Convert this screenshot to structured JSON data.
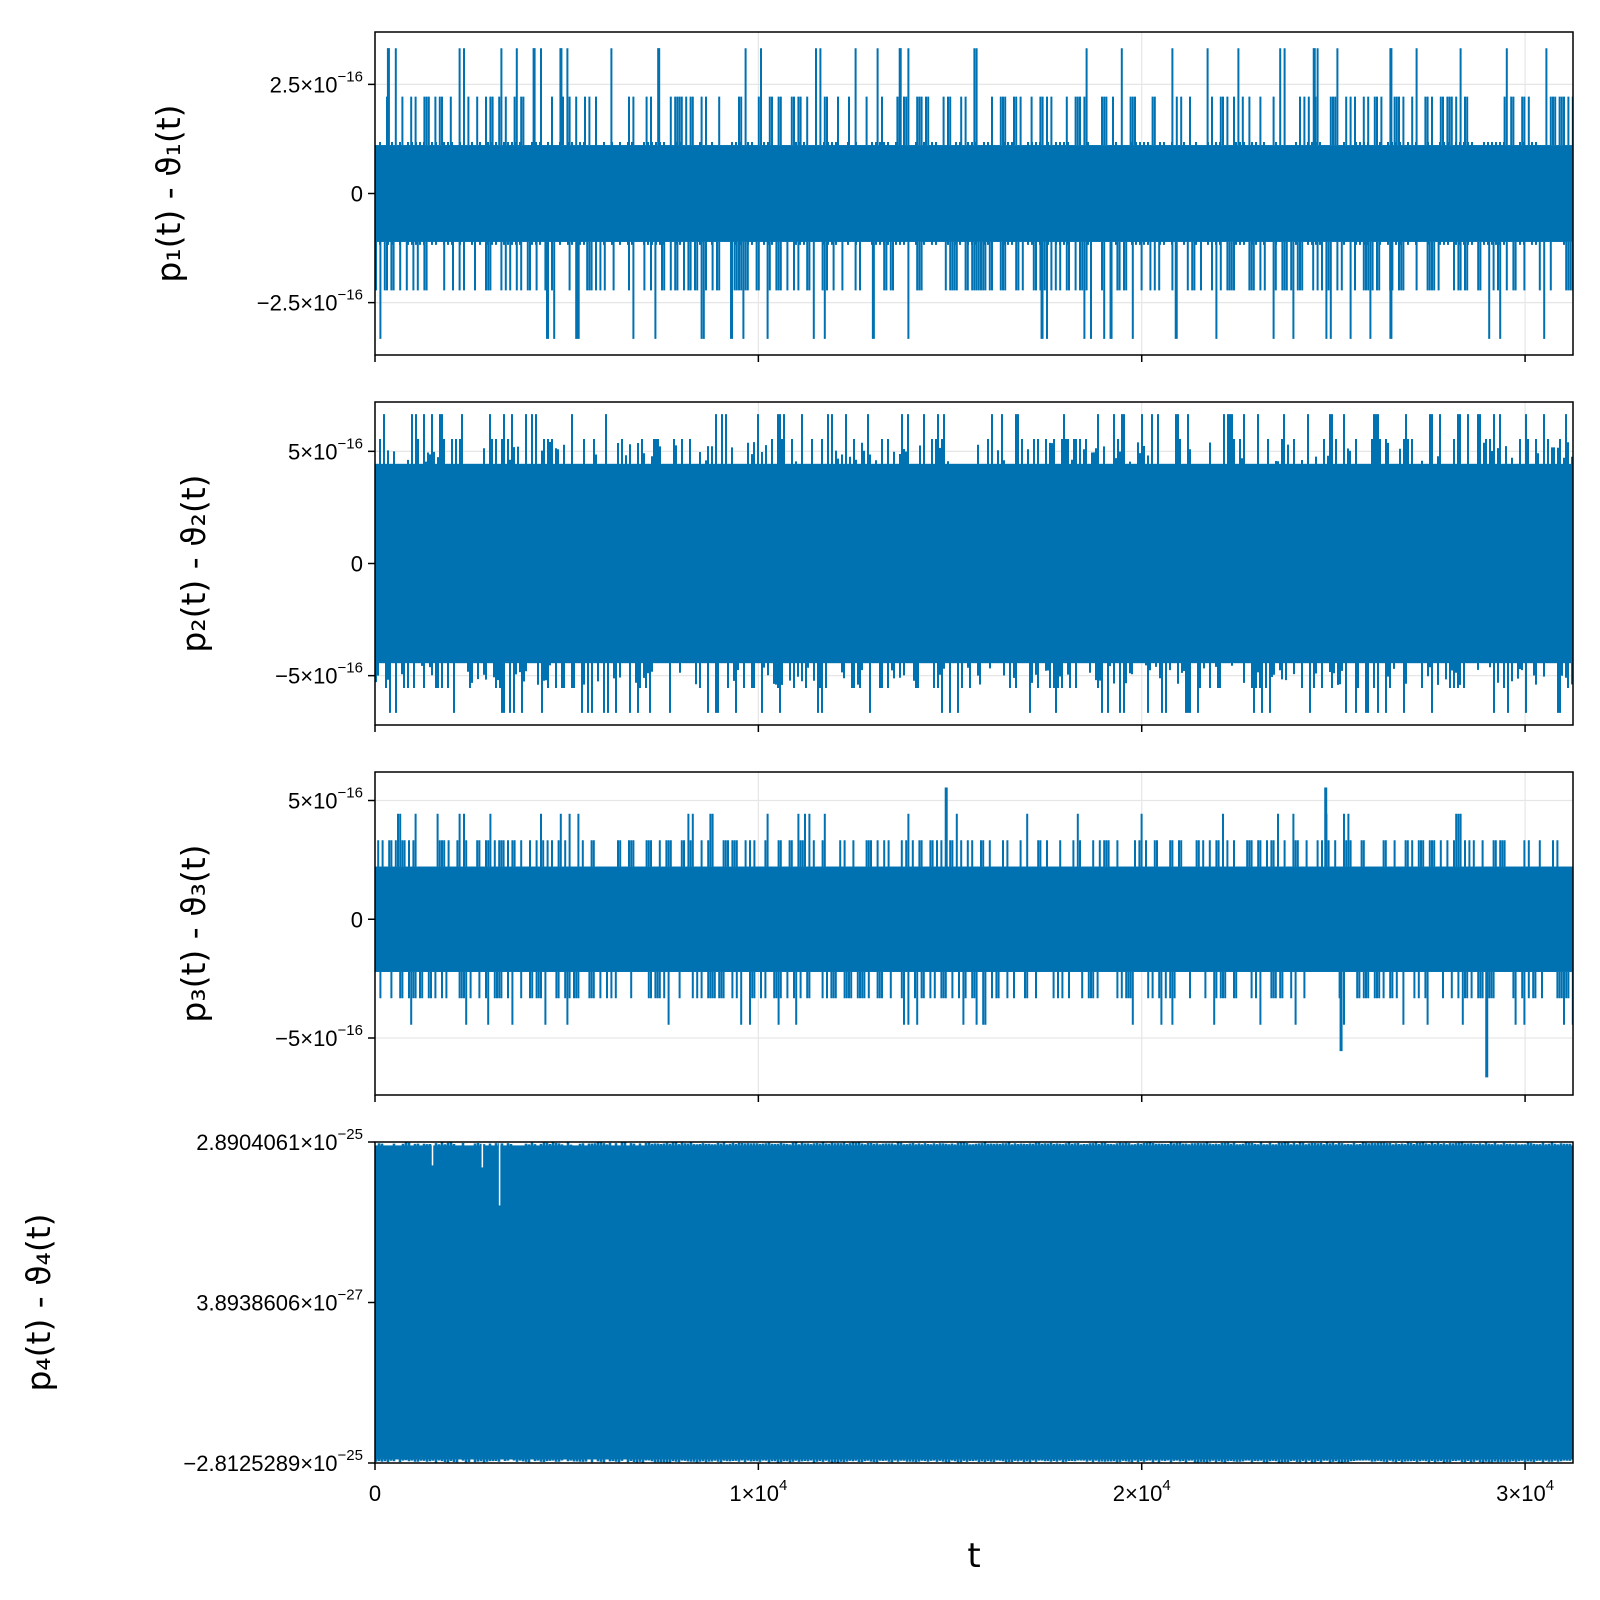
{
  "chart_data": [
    {
      "type": "line",
      "ylabel": "p₁(t) - ϑ₁(t)",
      "xlim": [
        0,
        31250
      ],
      "ylim": [
        -3.7e-16,
        3.7e-16
      ],
      "y_ticks": [
        {
          "value": 2.5e-16,
          "mantissa": "2.5×10",
          "exp": "−16"
        },
        {
          "value": 0,
          "mantissa": "0",
          "exp": ""
        },
        {
          "value": -2.5e-16,
          "mantissa": "−2.5×10",
          "exp": "−16"
        }
      ],
      "color": "#0072b2",
      "series_levels": [
        -3.33e-16,
        -2.22e-16,
        -1.11e-16,
        0,
        1.11e-16,
        2.22e-16,
        3.33e-16
      ],
      "band": [
        -1.11e-16,
        1.11e-16
      ],
      "spikes_up": [
        {
          "x": 350,
          "y": 3.33e-16
        },
        {
          "x": 4150,
          "y": 3.33e-16
        },
        {
          "x": 4850,
          "y": 3.33e-16
        },
        {
          "x": 7400,
          "y": 3.33e-16
        },
        {
          "x": 13700,
          "y": 3.33e-16
        },
        {
          "x": 24500,
          "y": 3.33e-16
        },
        {
          "x": 26500,
          "y": 3.33e-16
        }
      ],
      "spikes_down": [
        {
          "x": 4500,
          "y": -3.33e-16
        },
        {
          "x": 5300,
          "y": -3.33e-16
        },
        {
          "x": 9300,
          "y": -3.33e-16
        },
        {
          "x": 13000,
          "y": -3.33e-16
        },
        {
          "x": 17400,
          "y": -3.33e-16
        },
        {
          "x": 19200,
          "y": -3.33e-16
        },
        {
          "x": 20900,
          "y": -3.33e-16
        },
        {
          "x": 26500,
          "y": -3.33e-16
        }
      ]
    },
    {
      "type": "line",
      "ylabel": "p₂(t) - ϑ₂(t)",
      "xlim": [
        0,
        31250
      ],
      "ylim": [
        -7.2e-16,
        7.2e-16
      ],
      "y_ticks": [
        {
          "value": 5e-16,
          "mantissa": "5×10",
          "exp": "−16"
        },
        {
          "value": 0,
          "mantissa": "0",
          "exp": ""
        },
        {
          "value": -5e-16,
          "mantissa": "−5×10",
          "exp": "−16"
        }
      ],
      "color": "#0072b2",
      "series_levels": [
        -6.66e-16,
        -5.55e-16,
        -4.44e-16,
        4.44e-16,
        5.55e-16,
        6.66e-16
      ],
      "band": [
        -4.44e-16,
        4.44e-16
      ]
    },
    {
      "type": "line",
      "ylabel": "p₃(t) - ϑ₃(t)",
      "xlim": [
        0,
        31250
      ],
      "ylim": [
        -7.4e-16,
        6.2e-16
      ],
      "y_ticks": [
        {
          "value": 5e-16,
          "mantissa": "5×10",
          "exp": "−16"
        },
        {
          "value": 0,
          "mantissa": "0",
          "exp": ""
        },
        {
          "value": -5e-16,
          "mantissa": "−5×10",
          "exp": "−16"
        }
      ],
      "color": "#0072b2",
      "series_levels": [
        -4.44e-16,
        -3.33e-16,
        -2.22e-16,
        2.22e-16,
        3.33e-16,
        4.44e-16
      ],
      "band": [
        -2.22e-16,
        2.22e-16
      ],
      "spikes_up": [
        {
          "x": 14900,
          "y": 5.55e-16
        },
        {
          "x": 24800,
          "y": 5.55e-16
        }
      ],
      "spikes_down": [
        {
          "x": 25200,
          "y": -5.55e-16
        },
        {
          "x": 29000,
          "y": -6.66e-16
        }
      ]
    },
    {
      "type": "line",
      "ylabel": "p₄(t) - ϑ₄(t)",
      "xlabel": "t",
      "xlim": [
        0,
        31250
      ],
      "x_ticks": [
        {
          "value": 0,
          "mantissa": "0",
          "exp": ""
        },
        {
          "value": 10000,
          "mantissa": "1×10",
          "exp": "4"
        },
        {
          "value": 20000,
          "mantissa": "2×10",
          "exp": "4"
        },
        {
          "value": 30000,
          "mantissa": "3×10",
          "exp": "4"
        }
      ],
      "ylim": [
        -2.8125289e-25,
        2.8904061e-25
      ],
      "y_ticks": [
        {
          "value": 2.8904061e-25,
          "mantissa": "2.8904061×10",
          "exp": "−25"
        },
        {
          "value": 3.8938606e-27,
          "mantissa": "3.8938606×10",
          "exp": "−27"
        },
        {
          "value": -2.8125289e-25,
          "mantissa": "−2.8125289×10",
          "exp": "−25"
        }
      ],
      "color": "#0072b2",
      "band": [
        -2.75e-25,
        2.83e-25
      ]
    }
  ]
}
